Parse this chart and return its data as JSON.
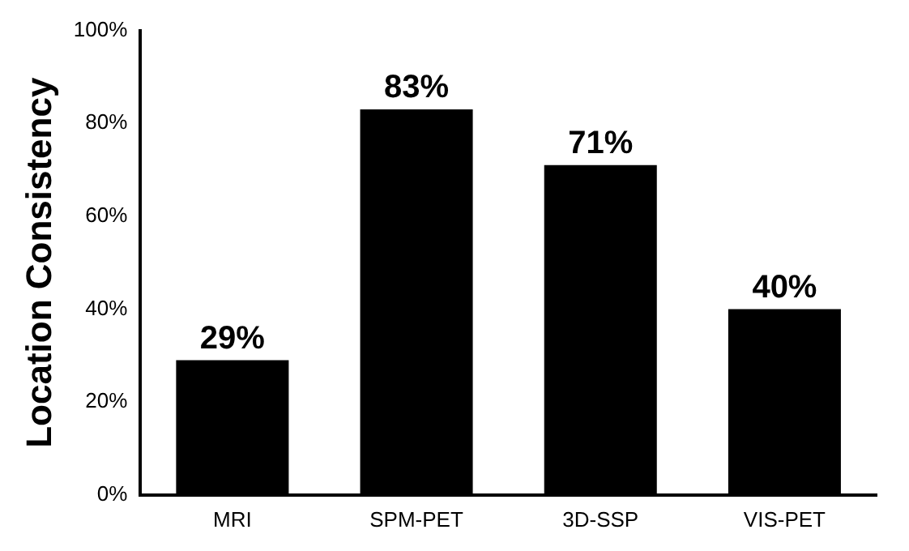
{
  "chart_data": {
    "type": "bar",
    "ylabel": "Location Consistency",
    "categories": [
      "MRI",
      "SPM-PET",
      "3D-SSP",
      "VIS-PET"
    ],
    "values": [
      29,
      83,
      71,
      40
    ],
    "color": "#000000",
    "value_labels": [
      "29%",
      "83%",
      "71%",
      "40%"
    ],
    "ylim": [
      0,
      100
    ],
    "yticks": [
      {
        "value": 0,
        "label": "0%"
      },
      {
        "value": 20,
        "label": "20%"
      },
      {
        "value": 40,
        "label": "40%"
      },
      {
        "value": 60,
        "label": "60%"
      },
      {
        "value": 80,
        "label": "80%"
      },
      {
        "value": 100,
        "label": "100%"
      }
    ],
    "grid": false,
    "legend": false
  }
}
